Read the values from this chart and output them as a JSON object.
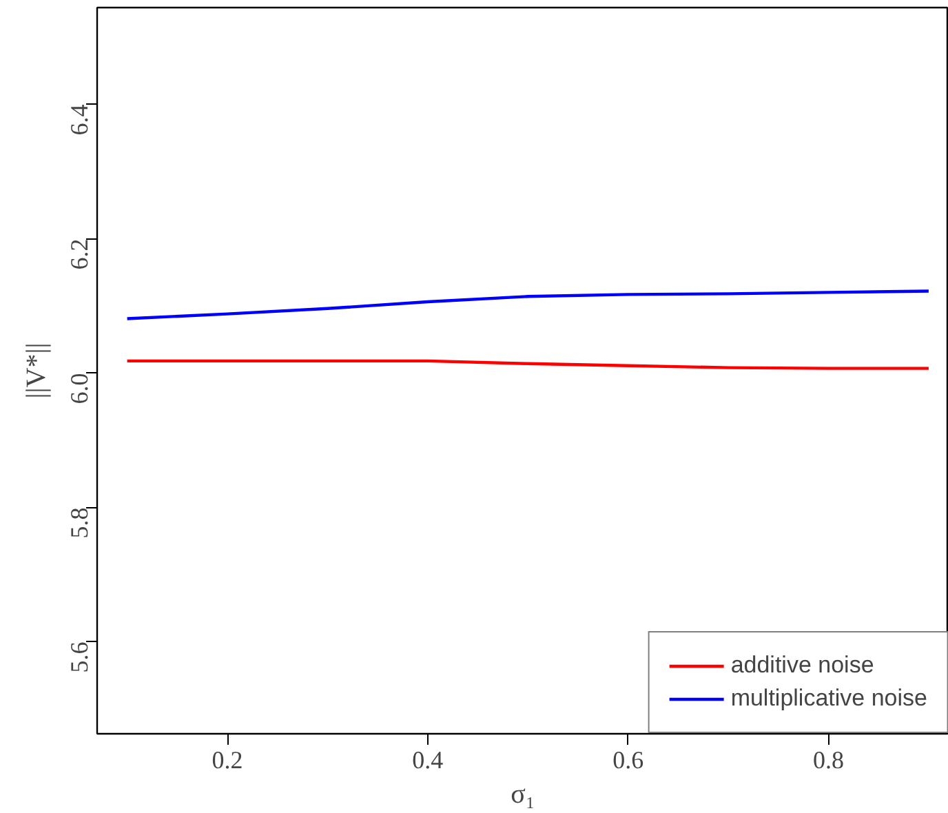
{
  "chart_data": {
    "type": "line",
    "xlabel": "σ₁",
    "ylabel": "||V*||",
    "x": [
      0.1,
      0.2,
      0.3,
      0.4,
      0.5,
      0.6,
      0.7,
      0.8,
      0.9
    ],
    "series": [
      {
        "name": "additive noise",
        "color": "#ff0000",
        "values": [
          6.018,
          6.018,
          6.018,
          6.018,
          6.014,
          6.011,
          6.008,
          6.007,
          6.007
        ]
      },
      {
        "name": "multiplicative noise",
        "color": "#0000ff",
        "values": [
          6.081,
          6.088,
          6.096,
          6.106,
          6.114,
          6.117,
          6.118,
          6.12,
          6.122
        ]
      }
    ],
    "xlim": [
      0.07,
      0.92
    ],
    "ylim": [
      5.463,
      6.544
    ],
    "xticks": [
      0.2,
      0.4,
      0.6,
      0.8
    ],
    "yticks": [
      5.6,
      5.8,
      {
        "value": 6,
        "label": "6.0"
      },
      6.2,
      6.4
    ],
    "grid": false,
    "legend": "bottom right",
    "marker": "none",
    "line_style": "solid"
  }
}
